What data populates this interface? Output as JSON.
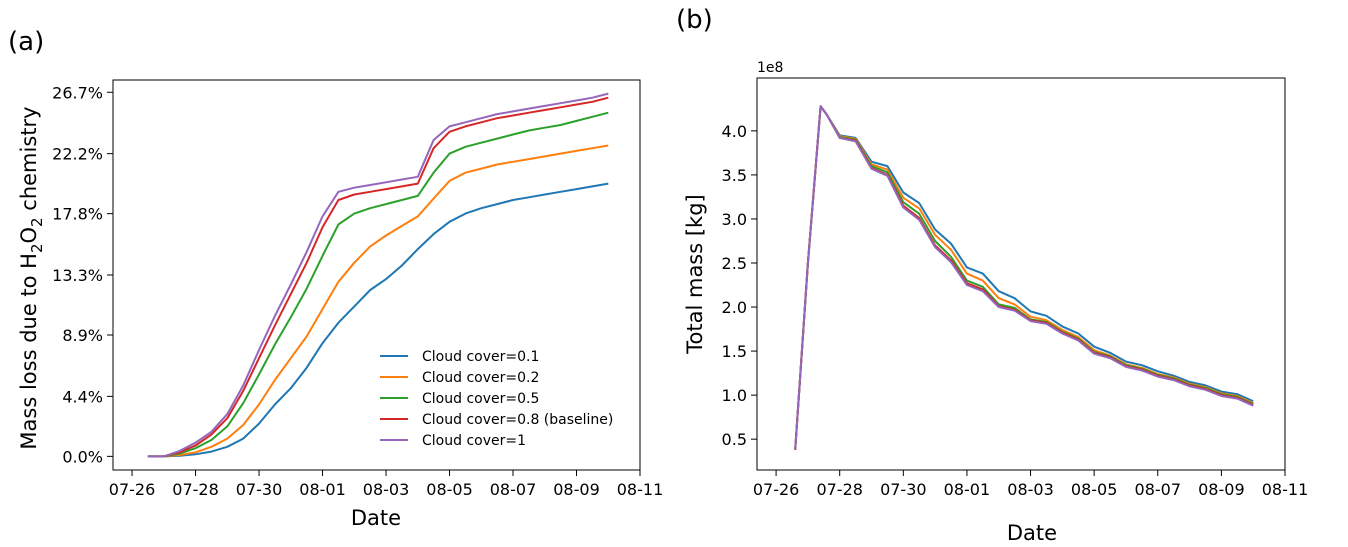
{
  "chart_data": [
    {
      "panel": "(a)",
      "type": "line",
      "xlabel": "Date",
      "ylabel": "Mass loss due to H₂O₂ chemistry",
      "ylabel_parts": [
        "Mass loss due to H",
        "2",
        "O",
        "2",
        " chemistry"
      ],
      "x_ticks": [
        "07-26",
        "07-28",
        "07-30",
        "08-01",
        "08-03",
        "08-05",
        "08-07",
        "08-09",
        "08-11"
      ],
      "y_ticks": [
        "0.0%",
        "4.4%",
        "8.9%",
        "13.3%",
        "17.8%",
        "22.2%",
        "26.7%"
      ],
      "xlim": [
        "07-25.4",
        "08-11.0"
      ],
      "ylim": [
        -1.0,
        27.6
      ],
      "x": [
        "07-26.5",
        "07-27.0",
        "07-27.5",
        "07-28.0",
        "07-28.5",
        "07-29.0",
        "07-29.5",
        "07-30.0",
        "07-30.5",
        "07-31.0",
        "07-31.5",
        "08-01.0",
        "08-01.5",
        "08-02.0",
        "08-02.5",
        "08-03.0",
        "08-03.5",
        "08-04.0",
        "08-04.5",
        "08-05.0",
        "08-05.5",
        "08-06.0",
        "08-06.5",
        "08-07.0",
        "08-07.5",
        "08-08.0",
        "08-08.5",
        "08-09.0",
        "08-09.5",
        "08-10.0"
      ],
      "legend_position": "lower right",
      "series": [
        {
          "name": "Cloud cover=0.1",
          "color": "#1f77b4",
          "values": [
            0,
            0,
            0.05,
            0.15,
            0.35,
            0.7,
            1.3,
            2.4,
            3.8,
            5.0,
            6.5,
            8.3,
            9.8,
            11.0,
            12.2,
            13.0,
            14.0,
            15.2,
            16.3,
            17.2,
            17.8,
            18.2,
            18.5,
            18.8,
            19.0,
            19.2,
            19.4,
            19.6,
            19.8,
            20.0
          ]
        },
        {
          "name": "Cloud cover=0.2",
          "color": "#ff7f0e",
          "values": [
            0,
            0,
            0.1,
            0.3,
            0.7,
            1.3,
            2.3,
            3.8,
            5.6,
            7.2,
            8.8,
            10.8,
            12.8,
            14.2,
            15.4,
            16.2,
            16.9,
            17.6,
            18.9,
            20.2,
            20.8,
            21.1,
            21.4,
            21.6,
            21.8,
            22.0,
            22.2,
            22.4,
            22.6,
            22.8
          ]
        },
        {
          "name": "Cloud cover=0.5",
          "color": "#2ca02c",
          "values": [
            0,
            0,
            0.2,
            0.6,
            1.2,
            2.2,
            3.9,
            6.0,
            8.2,
            10.2,
            12.3,
            14.7,
            17.0,
            17.8,
            18.2,
            18.5,
            18.8,
            19.1,
            20.8,
            22.2,
            22.7,
            23.0,
            23.3,
            23.6,
            23.9,
            24.1,
            24.3,
            24.6,
            24.9,
            25.2
          ]
        },
        {
          "name": "Cloud cover=0.8 (baseline)",
          "color": "#d62728",
          "values": [
            0,
            0,
            0.3,
            0.8,
            1.6,
            2.8,
            4.8,
            7.2,
            9.6,
            11.9,
            14.2,
            16.8,
            18.8,
            19.2,
            19.4,
            19.6,
            19.8,
            20.0,
            22.6,
            23.8,
            24.2,
            24.5,
            24.8,
            25.0,
            25.2,
            25.4,
            25.6,
            25.8,
            26.0,
            26.3
          ]
        },
        {
          "name": "Cloud cover=1",
          "color": "#9467bd",
          "values": [
            0,
            0,
            0.4,
            1.0,
            1.8,
            3.1,
            5.2,
            7.8,
            10.3,
            12.6,
            15.0,
            17.6,
            19.4,
            19.7,
            19.9,
            20.1,
            20.3,
            20.5,
            23.2,
            24.2,
            24.5,
            24.8,
            25.1,
            25.3,
            25.5,
            25.7,
            25.9,
            26.1,
            26.3,
            26.6
          ]
        }
      ]
    },
    {
      "panel": "(b)",
      "type": "line",
      "xlabel": "Date",
      "ylabel": "Total mass [kg]",
      "multiplier": "1e8",
      "x_ticks": [
        "07-26",
        "07-28",
        "07-30",
        "08-01",
        "08-03",
        "08-05",
        "08-07",
        "08-09",
        "08-11"
      ],
      "y_ticks": [
        "0.5",
        "1.0",
        "1.5",
        "2.0",
        "2.5",
        "3.0",
        "3.5",
        "4.0"
      ],
      "xlim": [
        "07-25.4",
        "08-11.0"
      ],
      "ylim": [
        0.15,
        4.6
      ],
      "x": [
        "07-26.6",
        "07-27.0",
        "07-27.4",
        "07-27.6",
        "07-28.0",
        "07-28.5",
        "07-29.0",
        "07-29.5",
        "07-30.0",
        "07-30.5",
        "07-31.0",
        "07-31.5",
        "08-01.0",
        "08-01.5",
        "08-02.0",
        "08-02.5",
        "08-03.0",
        "08-03.5",
        "08-04.0",
        "08-04.5",
        "08-05.0",
        "08-05.5",
        "08-06.0",
        "08-06.5",
        "08-07.0",
        "08-07.5",
        "08-08.0",
        "08-08.5",
        "08-09.0",
        "08-09.5",
        "08-10.0"
      ],
      "legend_position": "none",
      "series": [
        {
          "color": "#1f77b4",
          "values": [
            0.38,
            2.5,
            4.28,
            4.18,
            3.95,
            3.92,
            3.65,
            3.6,
            3.3,
            3.18,
            2.88,
            2.72,
            2.45,
            2.38,
            2.18,
            2.1,
            1.95,
            1.9,
            1.78,
            1.7,
            1.55,
            1.48,
            1.38,
            1.34,
            1.27,
            1.22,
            1.15,
            1.11,
            1.04,
            1.01,
            0.93
          ]
        },
        {
          "color": "#ff7f0e",
          "values": [
            0.38,
            2.5,
            4.28,
            4.18,
            3.94,
            3.91,
            3.62,
            3.56,
            3.24,
            3.12,
            2.82,
            2.65,
            2.38,
            2.3,
            2.1,
            2.03,
            1.89,
            1.85,
            1.74,
            1.66,
            1.51,
            1.45,
            1.35,
            1.31,
            1.24,
            1.2,
            1.13,
            1.09,
            1.02,
            0.99,
            0.91
          ]
        },
        {
          "color": "#2ca02c",
          "values": [
            0.38,
            2.5,
            4.28,
            4.18,
            3.93,
            3.9,
            3.6,
            3.53,
            3.19,
            3.06,
            2.75,
            2.57,
            2.3,
            2.23,
            2.03,
            1.99,
            1.86,
            1.83,
            1.72,
            1.64,
            1.49,
            1.44,
            1.34,
            1.3,
            1.23,
            1.19,
            1.12,
            1.08,
            1.01,
            0.98,
            0.9
          ]
        },
        {
          "color": "#d62728",
          "values": [
            0.38,
            2.5,
            4.28,
            4.18,
            3.92,
            3.89,
            3.58,
            3.5,
            3.15,
            3.01,
            2.7,
            2.53,
            2.27,
            2.2,
            2.01,
            1.97,
            1.85,
            1.82,
            1.71,
            1.63,
            1.48,
            1.43,
            1.33,
            1.29,
            1.22,
            1.18,
            1.11,
            1.07,
            1.0,
            0.97,
            0.89
          ]
        },
        {
          "color": "#9467bd",
          "values": [
            0.38,
            2.5,
            4.28,
            4.18,
            3.92,
            3.88,
            3.57,
            3.49,
            3.13,
            2.99,
            2.68,
            2.51,
            2.25,
            2.18,
            2.0,
            1.96,
            1.84,
            1.81,
            1.7,
            1.62,
            1.47,
            1.42,
            1.32,
            1.28,
            1.21,
            1.17,
            1.1,
            1.06,
            0.99,
            0.96,
            0.88
          ]
        }
      ]
    }
  ]
}
